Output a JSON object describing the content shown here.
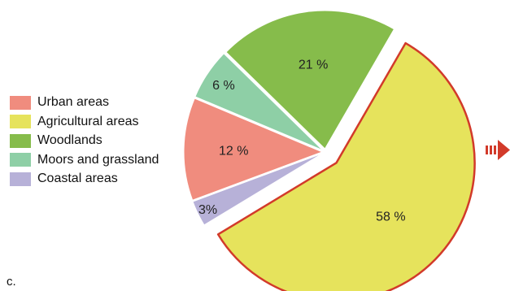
{
  "chart_data": {
    "type": "pie",
    "title": "",
    "slices": [
      {
        "label": "Agricultural areas",
        "value": 58,
        "display": "58 %",
        "color": "#e6e35c",
        "exploded": true,
        "outline": "#d23a2a"
      },
      {
        "label": "Coastal areas",
        "value": 3,
        "display": "3%",
        "color": "#b7b1d8"
      },
      {
        "label": "Urban areas",
        "value": 12,
        "display": "12 %",
        "color": "#f08c7e"
      },
      {
        "label": "Moors and grassland",
        "value": 6,
        "display": "6 %",
        "color": "#8ecfa6"
      },
      {
        "label": "Woodlands",
        "value": 21,
        "display": "21 %",
        "color": "#86bc4b"
      }
    ],
    "legend": {
      "position": "left",
      "order": [
        "Urban areas",
        "Agricultural areas",
        "Woodlands",
        "Moors and grassland",
        "Coastal areas"
      ]
    },
    "arrow_color": "#d23a2a"
  },
  "panel_letter": "c."
}
